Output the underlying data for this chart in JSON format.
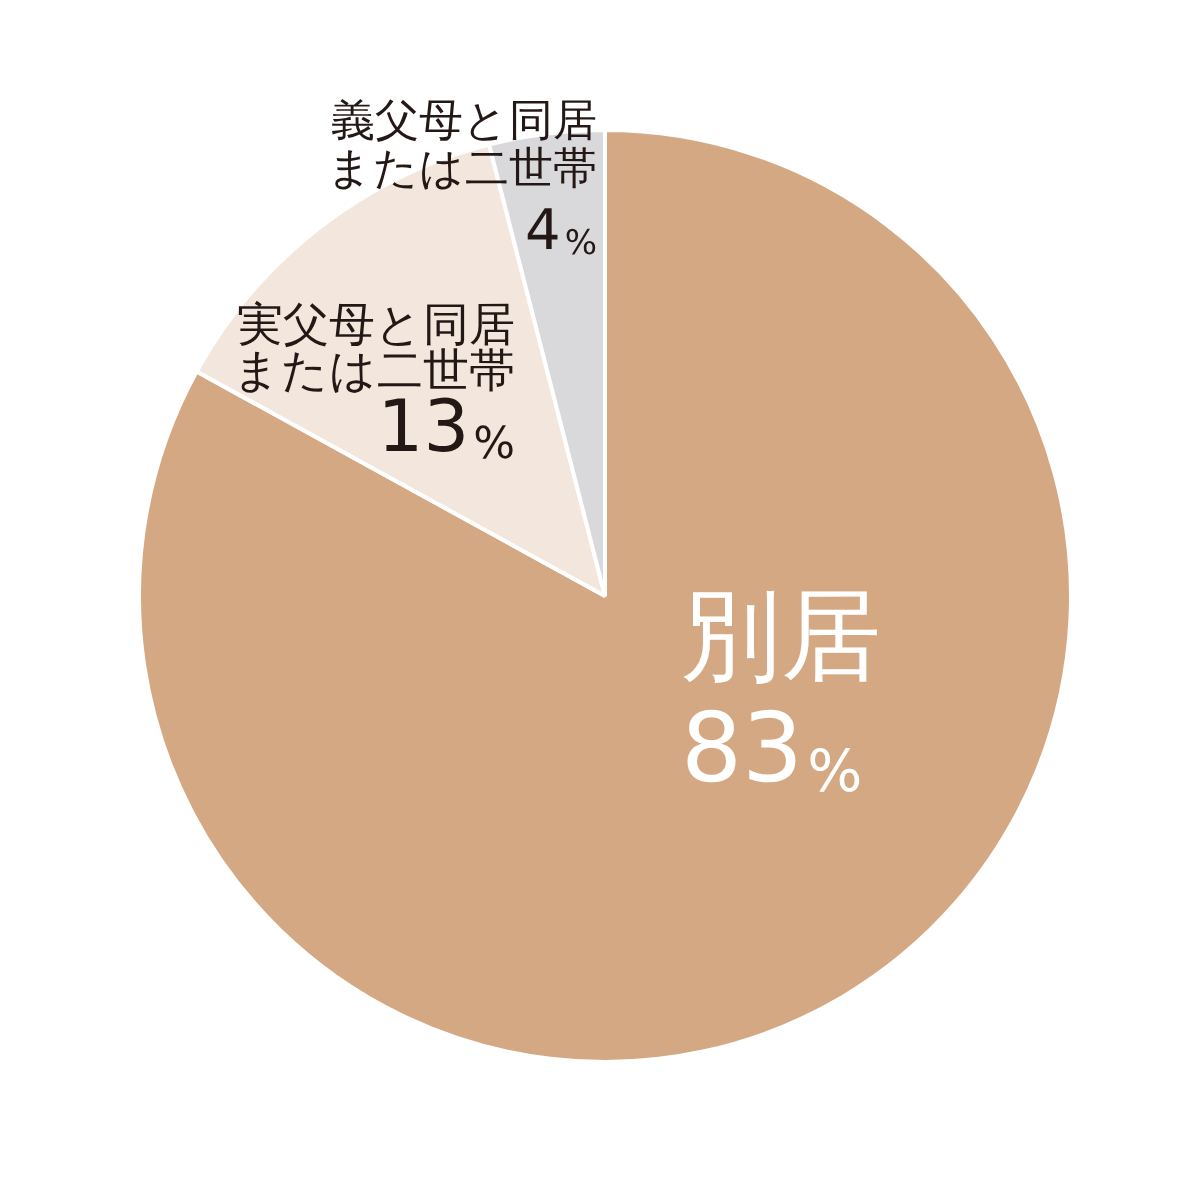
{
  "chart_data": {
    "type": "pie",
    "categories": [
      "別居",
      "実父母と同居または二世帯",
      "義父母と同居または二世帯"
    ],
    "values": [
      83,
      13,
      4
    ],
    "colors": [
      "#d3a882",
      "#f3e7dd",
      "#d9d9db"
    ],
    "value_labels": [
      "83%",
      "13%",
      "4%"
    ]
  }
}
